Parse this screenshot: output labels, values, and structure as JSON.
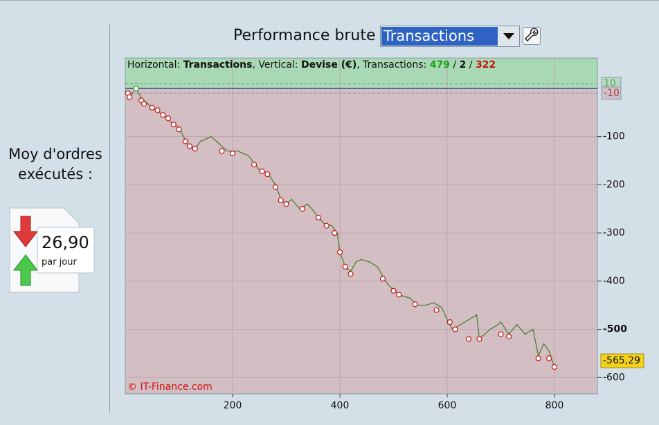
{
  "summary": {
    "label": "Moy d'ordres exécutés :",
    "value": "26,90",
    "unit": "par jour"
  },
  "chart_data": {
    "type": "line",
    "title": "Performance brute",
    "dropdown": "Transactions",
    "copyright": "© IT-Finance.com",
    "info": [
      {
        "text": "Horizontal: "
      },
      {
        "text": "Transactions",
        "bold": true
      },
      {
        "text": ", Vertical: "
      },
      {
        "text": "Devise (€)",
        "bold": true
      },
      {
        "text": ", Transactions: "
      },
      {
        "value": 479,
        "bold": true,
        "color": "#18a018"
      },
      {
        "text": " / "
      },
      {
        "value": 2,
        "bold": true,
        "color": "#111111"
      },
      {
        "text": " / "
      },
      {
        "value": 322,
        "bold": true,
        "color": "#c81010"
      }
    ],
    "xlim": [
      0,
      880
    ],
    "ylim": [
      -634,
      63
    ],
    "xticks": [
      200,
      400,
      600,
      800
    ],
    "yticks": [
      -100,
      -200,
      -300,
      -400,
      -500,
      -600
    ],
    "bold_ytick": -500,
    "ref_lines": [
      10,
      -10
    ],
    "grid": true,
    "current_value": {
      "value": -565.29,
      "label": "-565,29"
    },
    "series": [
      {
        "color": "#3c7a22",
        "x": [
          0,
          10,
          20,
          30,
          50,
          70,
          90,
          100,
          115,
          130,
          140,
          150,
          160,
          175,
          190,
          210,
          230,
          240,
          250,
          265,
          280,
          290,
          300,
          310,
          325,
          340,
          355,
          370,
          385,
          395,
          400,
          410,
          420,
          430,
          440,
          455,
          470,
          485,
          500,
          515,
          530,
          545,
          560,
          575,
          590,
          600,
          610,
          625,
          640,
          655,
          660,
          680,
          695,
          700,
          715,
          730,
          745,
          760,
          770,
          780,
          790,
          800
        ],
        "values": [
          -5,
          -15,
          0,
          -20,
          -40,
          -55,
          -75,
          -80,
          -115,
          -125,
          -110,
          -105,
          -100,
          -115,
          -130,
          -130,
          -140,
          -155,
          -170,
          -175,
          -200,
          -230,
          -240,
          -230,
          -250,
          -240,
          -260,
          -280,
          -285,
          -300,
          -340,
          -370,
          -380,
          -360,
          -355,
          -360,
          -370,
          -400,
          -420,
          -430,
          -435,
          -450,
          -450,
          -445,
          -455,
          -480,
          -500,
          -490,
          -480,
          -470,
          -520,
          -500,
          -490,
          -485,
          -510,
          -490,
          -510,
          -500,
          -555,
          -530,
          -545,
          -580
        ]
      },
      {
        "color": "#cc1010",
        "marker": "circle",
        "x": [
          5,
          8,
          30,
          35,
          50,
          60,
          70,
          80,
          90,
          100,
          112,
          120,
          130,
          180,
          200,
          240,
          255,
          265,
          280,
          290,
          300,
          330,
          360,
          375,
          390,
          400,
          410,
          420,
          480,
          500,
          510,
          540,
          580,
          605,
          615,
          640,
          660,
          700,
          715,
          770,
          790,
          800
        ],
        "values": [
          -10,
          -18,
          -25,
          -32,
          -40,
          -45,
          -55,
          -62,
          -75,
          -85,
          -110,
          -120,
          -125,
          -130,
          -135,
          -158,
          -172,
          -178,
          -205,
          -232,
          -240,
          -250,
          -268,
          -285,
          -300,
          -340,
          -370,
          -385,
          -395,
          -420,
          -428,
          -448,
          -460,
          -485,
          -500,
          -520,
          -520,
          -510,
          -515,
          -560,
          -560,
          -578
        ]
      },
      {
        "color": "#2a9a2a",
        "marker": "circle",
        "x": [
          20
        ],
        "values": [
          0
        ]
      }
    ]
  }
}
